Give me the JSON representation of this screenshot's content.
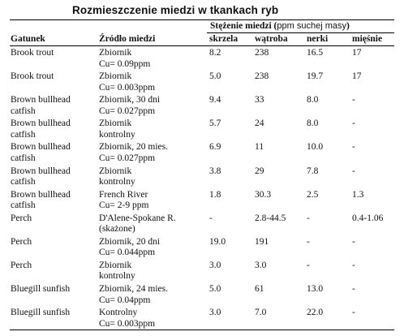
{
  "title": "Rozmieszczenie miedzi w tkankach ryb",
  "group_header": {
    "label": "Stężenie miedzi (",
    "unit": "ppm suchej masy",
    "close": ")"
  },
  "columns": [
    "Gatunek",
    "Źródło miedzi",
    "skrzela",
    "wątroba",
    "nerki",
    "mięśnie"
  ],
  "rows": [
    {
      "species": [
        "Brook trout"
      ],
      "source": [
        "Zbiornik",
        "Cu= 0.09ppm"
      ],
      "gill": "8.2",
      "liver": "238",
      "kidney": "16.5",
      "muscle": "17"
    },
    {
      "species": [
        "Brook trout"
      ],
      "source": [
        "Zbiornik",
        "Cu= 0.003ppm"
      ],
      "gill": "5.0",
      "liver": "238",
      "kidney": "19.7",
      "muscle": "17"
    },
    {
      "species": [
        "Brown bullhead",
        "catfish"
      ],
      "source": [
        "Zbiornik, 30 dni",
        "Cu= 0.027ppm"
      ],
      "gill": "9.4",
      "liver": "33",
      "kidney": "8.0",
      "muscle": "-"
    },
    {
      "species": [
        "Brown bullhead",
        "catfish"
      ],
      "source": [
        "Zbiornik",
        "kontrolny"
      ],
      "gill": "5.7",
      "liver": "24",
      "kidney": "8.0",
      "muscle": "-"
    },
    {
      "species": [
        "Brown bullhead",
        "catfish"
      ],
      "source": [
        "Zbiornik, 20 mies.",
        "Cu= 0.027ppm"
      ],
      "gill": "6.9",
      "liver": "11",
      "kidney": "10.0",
      "muscle": "-"
    },
    {
      "species": [
        "Brown bullhead",
        "catfish"
      ],
      "source": [
        "Zbiornik",
        "kontrolny"
      ],
      "gill": "3.8",
      "liver": "29",
      "kidney": "7.8",
      "muscle": "-"
    },
    {
      "species": [
        "Brown bullhead",
        "catfish"
      ],
      "source": [
        "French River",
        "Cu= 2-9 ppm"
      ],
      "gill": "1.8",
      "liver": "30.3",
      "kidney": "2.5",
      "muscle": "1.3"
    },
    {
      "species": [
        "Perch"
      ],
      "source": [
        "D'Alene-Spokane R.",
        "(skażone)"
      ],
      "gill": "-",
      "liver": "2.8-44.5",
      "kidney": "-",
      "muscle": "0.4-1.06"
    },
    {
      "species": [
        "Perch"
      ],
      "source": [
        "Zbiornik, 20 dni",
        "Cu= 0.044ppm"
      ],
      "gill": "19.0",
      "liver": "191",
      "kidney": "-",
      "muscle": "-"
    },
    {
      "species": [
        "Perch"
      ],
      "source": [
        "Zbiornik",
        "kontrolny"
      ],
      "gill": "3.0",
      "liver": "3.0",
      "kidney": "-",
      "muscle": "-"
    },
    {
      "species": [
        "Bluegill sunfish"
      ],
      "source": [
        "Zbiornik, 24 mies.",
        "Cu= 0.04ppm"
      ],
      "gill": "5.0",
      "liver": "61",
      "kidney": "13.0",
      "muscle": "-"
    },
    {
      "species": [
        "Bluegill sunfish"
      ],
      "source": [
        "Kontrolny",
        "Cu= 0.003ppm"
      ],
      "gill": "3.0",
      "liver": "7.0",
      "kidney": "22.0",
      "muscle": "-"
    }
  ]
}
